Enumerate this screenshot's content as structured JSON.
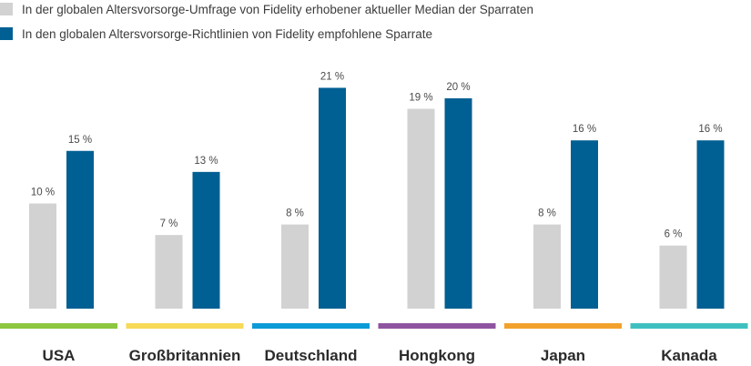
{
  "chart_data": {
    "type": "bar",
    "categories": [
      "USA",
      "Großbritannien",
      "Deutschland",
      "Hongkong",
      "Japan",
      "Kanada"
    ],
    "series": [
      {
        "name": "In der globalen Altersvorsorge-Umfrage von Fidelity erhobener aktueller Median der Sparraten",
        "values": [
          10,
          7,
          8,
          19,
          8,
          6
        ],
        "labels": [
          "10 %",
          "7 %",
          "8 %",
          "19 %",
          "8 %",
          "6 %"
        ],
        "color": "#d2d2d2"
      },
      {
        "name": "In den globalen Altersvorsorge-Richtlinien von Fidelity empfohlene Sparrate",
        "values": [
          15,
          13,
          21,
          20,
          16,
          16
        ],
        "labels": [
          "15 %",
          "13 %",
          "21 %",
          "20 %",
          "16 %",
          "16 %"
        ],
        "color": "#005f93"
      }
    ],
    "category_colors": [
      "#8dc63f",
      "#f6da58",
      "#0b9bd7",
      "#8f54a0",
      "#f2a22c",
      "#3fc0c0"
    ],
    "ylim": [
      0,
      21
    ],
    "grid": false,
    "legend_position": "top-left",
    "title": "",
    "xlabel": "",
    "ylabel": ""
  }
}
